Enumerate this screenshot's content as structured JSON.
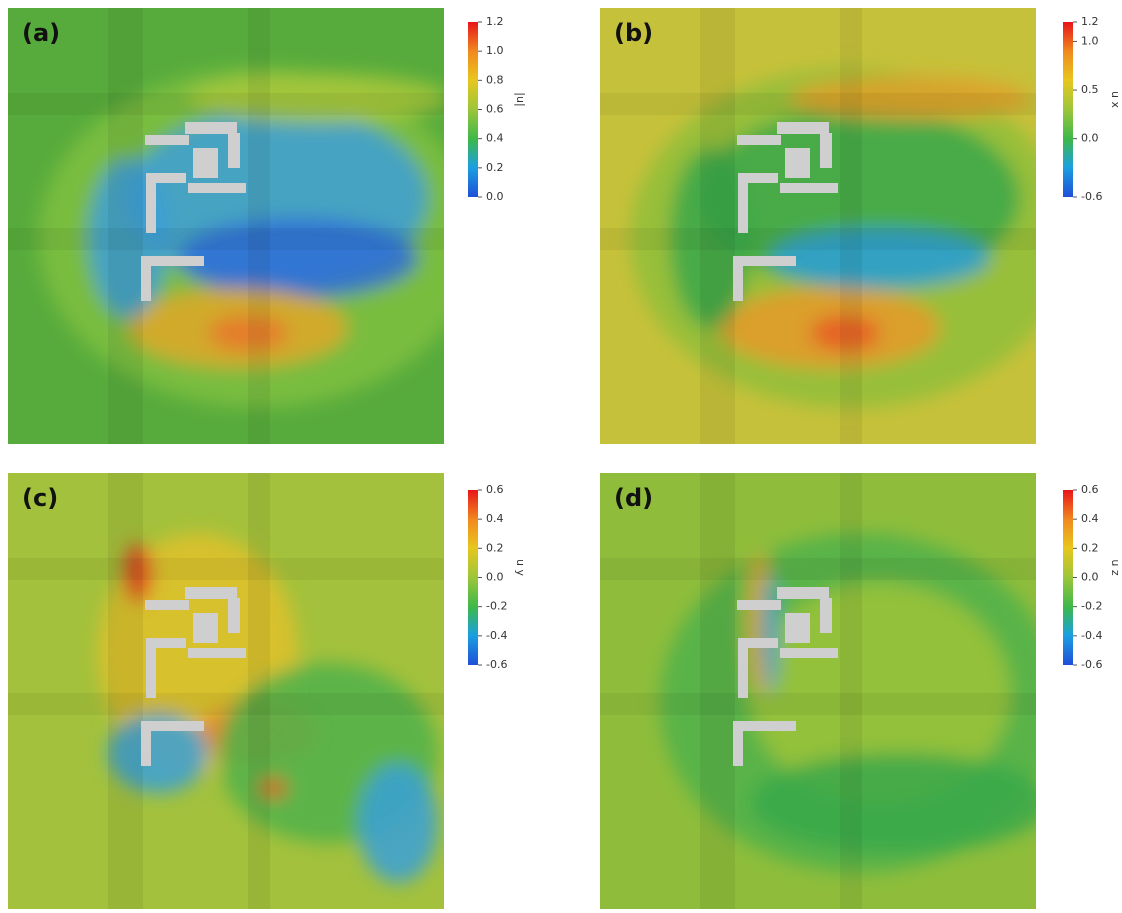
{
  "panels": [
    {
      "label": "(a)",
      "colorbar": {
        "title": "|u|",
        "lim": [
          0,
          1.2
        ],
        "ticks": [
          {
            "value": 0,
            "label": "0.0"
          },
          {
            "value": 0.2,
            "label": "0.2"
          },
          {
            "value": 0.4,
            "label": "0.4"
          },
          {
            "value": 0.6,
            "label": "0.6"
          },
          {
            "value": 0.8,
            "label": "0.8"
          },
          {
            "value": 1,
            "label": "1.0"
          },
          {
            "value": 1.2,
            "label": "1.2"
          }
        ]
      }
    },
    {
      "label": "(b)",
      "colorbar": {
        "title": "u x",
        "lim": [
          -0.6,
          1.2
        ],
        "ticks": [
          {
            "value": -0.6,
            "label": "-0.6"
          },
          {
            "value": 0,
            "label": "0.0"
          },
          0.5,
          {
            "value": 1,
            "label": "1.0"
          },
          1.2
        ]
      }
    },
    {
      "label": "(c)",
      "colorbar": {
        "title": "u y",
        "lim": [
          -0.6,
          0.6
        ],
        "ticks": [
          -0.6,
          -0.4,
          -0.2,
          {
            "value": 0,
            "label": "0.0"
          },
          0.2,
          0.4,
          0.6
        ]
      }
    },
    {
      "label": "(d)",
      "colorbar": {
        "title": "u z",
        "lim": [
          -0.6,
          0.6
        ],
        "ticks": [
          -0.6,
          -0.4,
          -0.2,
          {
            "value": 0,
            "label": "0.0"
          },
          0.2,
          0.4,
          0.6
        ]
      }
    }
  ]
}
